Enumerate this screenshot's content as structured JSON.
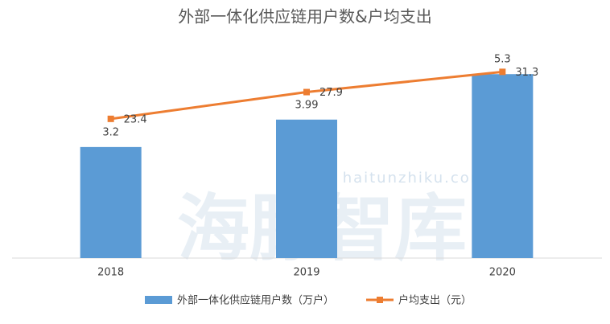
{
  "chart_data": {
    "type": "bar-line",
    "title": "外部一体化供应链用户数&户均支出",
    "watermark": "海豚智库",
    "watermark_url": "haitunzhiku.com",
    "categories": [
      "2018",
      "2019",
      "2020"
    ],
    "series": [
      {
        "name": "外部一体化供应链用户数（万户）",
        "color": "#5b9bd5",
        "type": "bar",
        "values": [
          3.2,
          3.99,
          5.3
        ]
      },
      {
        "name": "户均支出（元）",
        "color": "#ed7d31",
        "type": "line",
        "axis": "y2",
        "values": [
          23.4,
          27.9,
          31.3
        ]
      }
    ],
    "ylim": [
      0,
      6
    ],
    "y2lim": [
      0,
      35
    ],
    "legend": "bottom"
  }
}
